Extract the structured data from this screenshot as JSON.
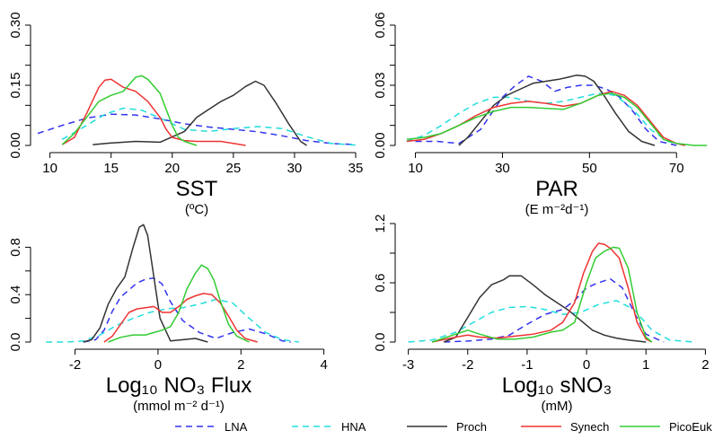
{
  "figure": {
    "legend": [
      {
        "name": "LNA",
        "color": "#3333ee",
        "dash": "dashed"
      },
      {
        "name": "HNA",
        "color": "#22dddd",
        "dash": "dashed"
      },
      {
        "name": "Proch",
        "color": "#333333",
        "dash": "solid"
      },
      {
        "name": "Synech",
        "color": "#ee3333",
        "dash": "solid"
      },
      {
        "name": "PicoEuk",
        "color": "#33cc33",
        "dash": "solid"
      }
    ]
  },
  "chart_data": [
    {
      "type": "line",
      "panel": "SST",
      "xlabel": "SST",
      "unit_label": "(ºC)",
      "xlim": [
        9,
        35
      ],
      "ylim": [
        0,
        0.3
      ],
      "xticks": [
        10,
        15,
        20,
        25,
        30,
        35
      ],
      "yticks": [
        0,
        0.15,
        0.3
      ],
      "ytick_labels": [
        "0.00",
        "0.15",
        "0.30"
      ],
      "minor_yticks": [
        0.05,
        0.1,
        0.2,
        0.25
      ],
      "series": [
        {
          "name": "LNA",
          "x": [
            9,
            11,
            13,
            15,
            17,
            19,
            21,
            23,
            25,
            27,
            29,
            31,
            33,
            35
          ],
          "y": [
            0.03,
            0.05,
            0.068,
            0.078,
            0.076,
            0.066,
            0.054,
            0.046,
            0.04,
            0.034,
            0.024,
            0.012,
            0.005,
            0.002
          ]
        },
        {
          "name": "HNA",
          "x": [
            11,
            13,
            14.5,
            16,
            17.5,
            19,
            21,
            23,
            25,
            27,
            29,
            31,
            33,
            35
          ],
          "y": [
            0.015,
            0.05,
            0.078,
            0.093,
            0.088,
            0.068,
            0.04,
            0.035,
            0.042,
            0.047,
            0.042,
            0.022,
            0.005,
            0.001
          ]
        },
        {
          "name": "Proch",
          "x": [
            13.5,
            15,
            17,
            19,
            21,
            22,
            23,
            24,
            25,
            26,
            26.8,
            27.5,
            28.5,
            29.5,
            30.5,
            31
          ],
          "y": [
            0.002,
            0.006,
            0.01,
            0.008,
            0.035,
            0.07,
            0.09,
            0.11,
            0.125,
            0.147,
            0.16,
            0.15,
            0.105,
            0.055,
            0.01,
            0.0
          ]
        },
        {
          "name": "Synech",
          "x": [
            11,
            12,
            13,
            14,
            14.5,
            15,
            15.5,
            16,
            17,
            18,
            19,
            19.5,
            20,
            21,
            22,
            24,
            26
          ],
          "y": [
            0.002,
            0.02,
            0.08,
            0.145,
            0.163,
            0.165,
            0.155,
            0.145,
            0.135,
            0.11,
            0.07,
            0.04,
            0.02,
            0.012,
            0.01,
            0.01,
            0.0
          ]
        },
        {
          "name": "PicoEuk",
          "x": [
            11,
            12,
            13,
            14,
            15,
            16,
            17,
            17.5,
            18,
            19,
            19.5,
            20,
            20.5,
            21,
            22
          ],
          "y": [
            0.002,
            0.03,
            0.07,
            0.11,
            0.125,
            0.135,
            0.17,
            0.174,
            0.165,
            0.13,
            0.09,
            0.05,
            0.02,
            0.01,
            0.0
          ]
        }
      ]
    },
    {
      "type": "line",
      "panel": "PAR",
      "xlabel": "PAR",
      "unit_label": "(E m⁻²d⁻¹)",
      "xlim": [
        7,
        78
      ],
      "ylim": [
        0,
        0.06
      ],
      "xticks": [
        10,
        30,
        50,
        70
      ],
      "yticks": [
        0,
        0.03,
        0.06
      ],
      "ytick_labels": [
        "0.00",
        "0.03",
        "0.06"
      ],
      "minor_yticks": [
        0.01,
        0.02,
        0.04,
        0.05
      ],
      "series": [
        {
          "name": "LNA",
          "x": [
            10,
            15,
            20,
            25,
            30,
            33,
            36,
            39,
            42,
            45,
            48,
            51,
            54,
            57,
            60,
            63,
            66,
            70
          ],
          "y": [
            0.002,
            0.002,
            0.001,
            0.008,
            0.024,
            0.03,
            0.0345,
            0.032,
            0.027,
            0.029,
            0.03,
            0.03,
            0.028,
            0.024,
            0.017,
            0.008,
            0.002,
            0.0
          ]
        },
        {
          "name": "HNA",
          "x": [
            8,
            12,
            16,
            20,
            24,
            28,
            32,
            36,
            40,
            44,
            48,
            52,
            56,
            60,
            64,
            68,
            72
          ],
          "y": [
            0.002,
            0.005,
            0.01,
            0.016,
            0.021,
            0.024,
            0.024,
            0.022,
            0.021,
            0.022,
            0.024,
            0.026,
            0.025,
            0.018,
            0.008,
            0.002,
            0.0
          ]
        },
        {
          "name": "Proch",
          "x": [
            20,
            22,
            25,
            28,
            31,
            34,
            37,
            40,
            43,
            45,
            47,
            49,
            51,
            53,
            56,
            59,
            62,
            65
          ],
          "y": [
            0.0,
            0.004,
            0.012,
            0.02,
            0.025,
            0.028,
            0.031,
            0.032,
            0.033,
            0.034,
            0.035,
            0.0345,
            0.032,
            0.026,
            0.016,
            0.007,
            0.002,
            0.0
          ]
        },
        {
          "name": "Synech",
          "x": [
            8,
            12,
            16,
            20,
            24,
            28,
            32,
            36,
            40,
            44,
            48,
            52,
            55,
            58,
            61,
            64,
            67,
            70,
            72
          ],
          "y": [
            0.002,
            0.003,
            0.006,
            0.01,
            0.015,
            0.019,
            0.021,
            0.022,
            0.021,
            0.0195,
            0.021,
            0.025,
            0.027,
            0.025,
            0.02,
            0.012,
            0.004,
            0.001,
            0.0
          ]
        },
        {
          "name": "PicoEuk",
          "x": [
            8,
            12,
            16,
            20,
            24,
            28,
            32,
            36,
            40,
            44,
            48,
            52,
            55,
            58,
            61,
            64,
            67,
            70,
            74,
            77
          ],
          "y": [
            0.003,
            0.004,
            0.006,
            0.01,
            0.014,
            0.017,
            0.019,
            0.019,
            0.0185,
            0.018,
            0.021,
            0.025,
            0.026,
            0.024,
            0.019,
            0.011,
            0.003,
            0.001,
            0.0,
            0.0
          ]
        }
      ]
    },
    {
      "type": "line",
      "panel": "NO3 Flux",
      "xlabel": "Log₁₀ NO₃ Flux",
      "unit_label": "(mmol m⁻² d⁻¹)",
      "xlim": [
        -2.9,
        3.9
      ],
      "ylim": [
        0,
        1.0
      ],
      "xticks": [
        -2,
        0,
        2,
        4
      ],
      "yticks": [
        0,
        0.4,
        0.8
      ],
      "ytick_labels": [
        "0.0",
        "0.4",
        "0.8"
      ],
      "minor_yticks": [
        0.2,
        0.6
      ],
      "series": [
        {
          "name": "LNA",
          "x": [
            -1.8,
            -1.5,
            -1.3,
            -1.1,
            -0.9,
            -0.7,
            -0.5,
            -0.3,
            -0.1,
            0.1,
            0.3,
            0.6,
            1.0,
            1.4,
            1.8,
            2.2,
            2.6,
            3.0,
            3.2
          ],
          "y": [
            0.0,
            0.02,
            0.1,
            0.26,
            0.38,
            0.44,
            0.5,
            0.53,
            0.54,
            0.49,
            0.34,
            0.18,
            0.08,
            0.03,
            0.08,
            0.11,
            0.07,
            0.01,
            0.0
          ]
        },
        {
          "name": "HNA",
          "x": [
            -2.7,
            -2.2,
            -1.8,
            -1.4,
            -1.0,
            -0.6,
            -0.2,
            0.2,
            0.6,
            1.0,
            1.4,
            1.8,
            2.2,
            2.6,
            3.0,
            3.4
          ],
          "y": [
            0.0,
            0.0,
            0.01,
            0.06,
            0.14,
            0.2,
            0.25,
            0.28,
            0.29,
            0.32,
            0.36,
            0.33,
            0.2,
            0.08,
            0.02,
            0.0
          ]
        },
        {
          "name": "Proch",
          "x": [
            -1.8,
            -1.6,
            -1.4,
            -1.2,
            -1.0,
            -0.8,
            -0.6,
            -0.45,
            -0.35,
            -0.25,
            -0.1,
            0.05,
            0.3,
            0.6,
            0.9,
            1.2
          ],
          "y": [
            0.0,
            0.02,
            0.12,
            0.32,
            0.45,
            0.55,
            0.8,
            0.97,
            0.99,
            0.9,
            0.55,
            0.2,
            0.01,
            0.02,
            0.03,
            0.0
          ]
        },
        {
          "name": "Synech",
          "x": [
            -1.3,
            -1.1,
            -0.9,
            -0.7,
            -0.5,
            -0.3,
            -0.1,
            0.1,
            0.3,
            0.5,
            0.7,
            0.9,
            1.1,
            1.3,
            1.5,
            1.7,
            1.9,
            2.1,
            2.4
          ],
          "y": [
            0.0,
            0.05,
            0.15,
            0.25,
            0.28,
            0.29,
            0.3,
            0.25,
            0.25,
            0.3,
            0.36,
            0.39,
            0.41,
            0.4,
            0.33,
            0.22,
            0.1,
            0.03,
            0.0
          ]
        },
        {
          "name": "PicoEuk",
          "x": [
            -1.2,
            -0.9,
            -0.6,
            -0.3,
            -0.1,
            0.1,
            0.3,
            0.5,
            0.7,
            0.9,
            1.05,
            1.2,
            1.35,
            1.5,
            1.7,
            1.9,
            2.2
          ],
          "y": [
            0.0,
            0.04,
            0.06,
            0.06,
            0.08,
            0.1,
            0.13,
            0.25,
            0.45,
            0.58,
            0.65,
            0.62,
            0.52,
            0.35,
            0.15,
            0.05,
            0.0
          ]
        }
      ]
    },
    {
      "type": "line",
      "panel": "sNO3",
      "xlabel": "Log₁₀ sNO₃",
      "unit_label": "(mM)",
      "xlim": [
        -3.1,
        2.1
      ],
      "ylim": [
        0,
        1.2
      ],
      "xticks": [
        -3,
        -2,
        -1,
        0,
        1,
        2
      ],
      "yticks": [
        0,
        0.6,
        1.2
      ],
      "ytick_labels": [
        "0.0",
        "0.6",
        "1.2"
      ],
      "minor_yticks": [
        0.3,
        0.9
      ],
      "series": [
        {
          "name": "LNA",
          "x": [
            -2.4,
            -2.0,
            -1.6,
            -1.3,
            -1.0,
            -0.7,
            -0.4,
            -0.2,
            0.0,
            0.2,
            0.4,
            0.6,
            0.8,
            1.0,
            1.3
          ],
          "y": [
            0.0,
            0.01,
            0.03,
            0.07,
            0.18,
            0.28,
            0.33,
            0.42,
            0.55,
            0.6,
            0.64,
            0.55,
            0.3,
            0.08,
            0.0
          ]
        },
        {
          "name": "HNA",
          "x": [
            -3.0,
            -2.6,
            -2.2,
            -1.9,
            -1.6,
            -1.3,
            -1.0,
            -0.7,
            -0.4,
            -0.1,
            0.2,
            0.5,
            0.8,
            1.1,
            1.4,
            1.8
          ],
          "y": [
            0.0,
            0.02,
            0.1,
            0.2,
            0.3,
            0.35,
            0.36,
            0.33,
            0.28,
            0.3,
            0.38,
            0.42,
            0.33,
            0.12,
            0.02,
            0.0
          ]
        },
        {
          "name": "Proch",
          "x": [
            -2.4,
            -2.2,
            -2.0,
            -1.8,
            -1.6,
            -1.4,
            -1.3,
            -1.1,
            -0.9,
            -0.7,
            -0.5,
            -0.3,
            -0.1,
            0.1,
            0.3,
            0.5,
            0.7,
            1.0
          ],
          "y": [
            0.0,
            0.05,
            0.25,
            0.45,
            0.58,
            0.63,
            0.67,
            0.67,
            0.58,
            0.48,
            0.4,
            0.32,
            0.22,
            0.12,
            0.07,
            0.04,
            0.02,
            0.0
          ]
        },
        {
          "name": "Synech",
          "x": [
            -2.6,
            -2.2,
            -2.0,
            -1.8,
            -1.5,
            -1.2,
            -0.9,
            -0.6,
            -0.4,
            -0.2,
            -0.05,
            0.1,
            0.2,
            0.3,
            0.4,
            0.55,
            0.7,
            0.85,
            1.0,
            1.1
          ],
          "y": [
            0.0,
            0.05,
            0.07,
            0.05,
            0.04,
            0.06,
            0.08,
            0.12,
            0.2,
            0.4,
            0.7,
            0.92,
            1.0,
            0.99,
            0.95,
            0.85,
            0.55,
            0.2,
            0.03,
            0.0
          ]
        },
        {
          "name": "PicoEuk",
          "x": [
            -2.6,
            -2.2,
            -2.0,
            -1.8,
            -1.5,
            -1.2,
            -0.9,
            -0.6,
            -0.4,
            -0.2,
            0.0,
            0.15,
            0.3,
            0.45,
            0.55,
            0.7,
            0.85,
            1.0,
            1.1
          ],
          "y": [
            0.0,
            0.08,
            0.12,
            0.08,
            0.03,
            0.03,
            0.05,
            0.1,
            0.12,
            0.2,
            0.6,
            0.85,
            0.92,
            0.96,
            0.95,
            0.75,
            0.3,
            0.05,
            0.0
          ]
        }
      ]
    }
  ]
}
